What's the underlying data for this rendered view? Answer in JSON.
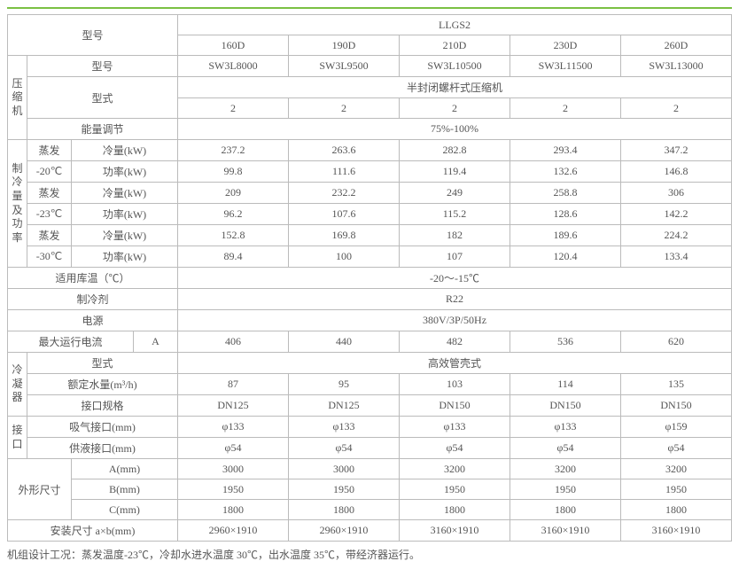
{
  "header": {
    "series_label": "型号",
    "series_value": "LLGS2",
    "models": [
      "160D",
      "190D",
      "210D",
      "230D",
      "260D"
    ]
  },
  "compressor": {
    "group": "压缩机",
    "model_label": "型号",
    "model_values": [
      "SW3L8000",
      "SW3L9500",
      "SW3L10500",
      "SW3L11500",
      "SW3L13000"
    ],
    "type_label": "型式",
    "type_value": "半封闭螺杆式压缩机",
    "qty_values": [
      "2",
      "2",
      "2",
      "2",
      "2"
    ],
    "capacity_label": "能量调节",
    "capacity_value": "75%-100%"
  },
  "cooling": {
    "group": "制冷量及功率",
    "temps": [
      "蒸发-20℃",
      "蒸发-23℃",
      "蒸发-30℃"
    ],
    "param_cool": "冷量(kW)",
    "param_power": "功率(kW)",
    "t20": {
      "evap": "蒸发",
      "deg": "-20℃",
      "cool": [
        "237.2",
        "263.6",
        "282.8",
        "293.4",
        "347.2"
      ],
      "power": [
        "99.8",
        "111.6",
        "119.4",
        "132.6",
        "146.8"
      ]
    },
    "t23": {
      "evap": "蒸发",
      "deg": "-23℃",
      "cool": [
        "209",
        "232.2",
        "249",
        "258.8",
        "306"
      ],
      "power": [
        "96.2",
        "107.6",
        "115.2",
        "128.6",
        "142.2"
      ]
    },
    "t30": {
      "evap": "蒸发",
      "deg": "-30℃",
      "cool": [
        "152.8",
        "169.8",
        "182",
        "189.6",
        "224.2"
      ],
      "power": [
        "89.4",
        "100",
        "107",
        "120.4",
        "133.4"
      ]
    }
  },
  "storage_temp": {
    "label": "适用库温（℃）",
    "value": "-20～-15℃"
  },
  "refrigerant": {
    "label": "制冷剂",
    "value": "R22"
  },
  "power_source": {
    "label": "电源",
    "value": "380V/3P/50Hz"
  },
  "max_current": {
    "label": "最大运行电流",
    "unit": "A",
    "values": [
      "406",
      "440",
      "482",
      "536",
      "620"
    ]
  },
  "condenser": {
    "group": "冷凝器",
    "type_label": "型式",
    "type_value": "高效管壳式",
    "water_label": "额定水量(m³/h)",
    "water_values": [
      "87",
      "95",
      "103",
      "114",
      "135"
    ],
    "conn_label": "接口规格",
    "conn_values": [
      "DN125",
      "DN125",
      "DN150",
      "DN150",
      "DN150"
    ]
  },
  "ports": {
    "group": "接口",
    "suction_label": "吸气接口(mm)",
    "suction_values": [
      "φ133",
      "φ133",
      "φ133",
      "φ133",
      "φ159"
    ],
    "liquid_label": "供液接口(mm)",
    "liquid_values": [
      "φ54",
      "φ54",
      "φ54",
      "φ54",
      "φ54"
    ]
  },
  "dimensions": {
    "group": "外形尺寸",
    "a_label": "A(mm)",
    "a_values": [
      "3000",
      "3000",
      "3200",
      "3200",
      "3200"
    ],
    "b_label": "B(mm)",
    "b_values": [
      "1950",
      "1950",
      "1950",
      "1950",
      "1950"
    ],
    "c_label": "C(mm)",
    "c_values": [
      "1800",
      "1800",
      "1800",
      "1800",
      "1800"
    ]
  },
  "install": {
    "label": "安装尺寸 a×b(mm)",
    "values": [
      "2960×1910",
      "2960×1910",
      "3160×1910",
      "3160×1910",
      "3160×1910"
    ]
  },
  "footnote": "机组设计工况：蒸发温度-23℃，冷却水进水温度 30℃，出水温度 35℃，带经济器运行。",
  "style": {
    "border_color": "#bbb",
    "accent_color": "#7bc043",
    "text_color": "#555",
    "font_size": 12,
    "background": "#ffffff"
  }
}
